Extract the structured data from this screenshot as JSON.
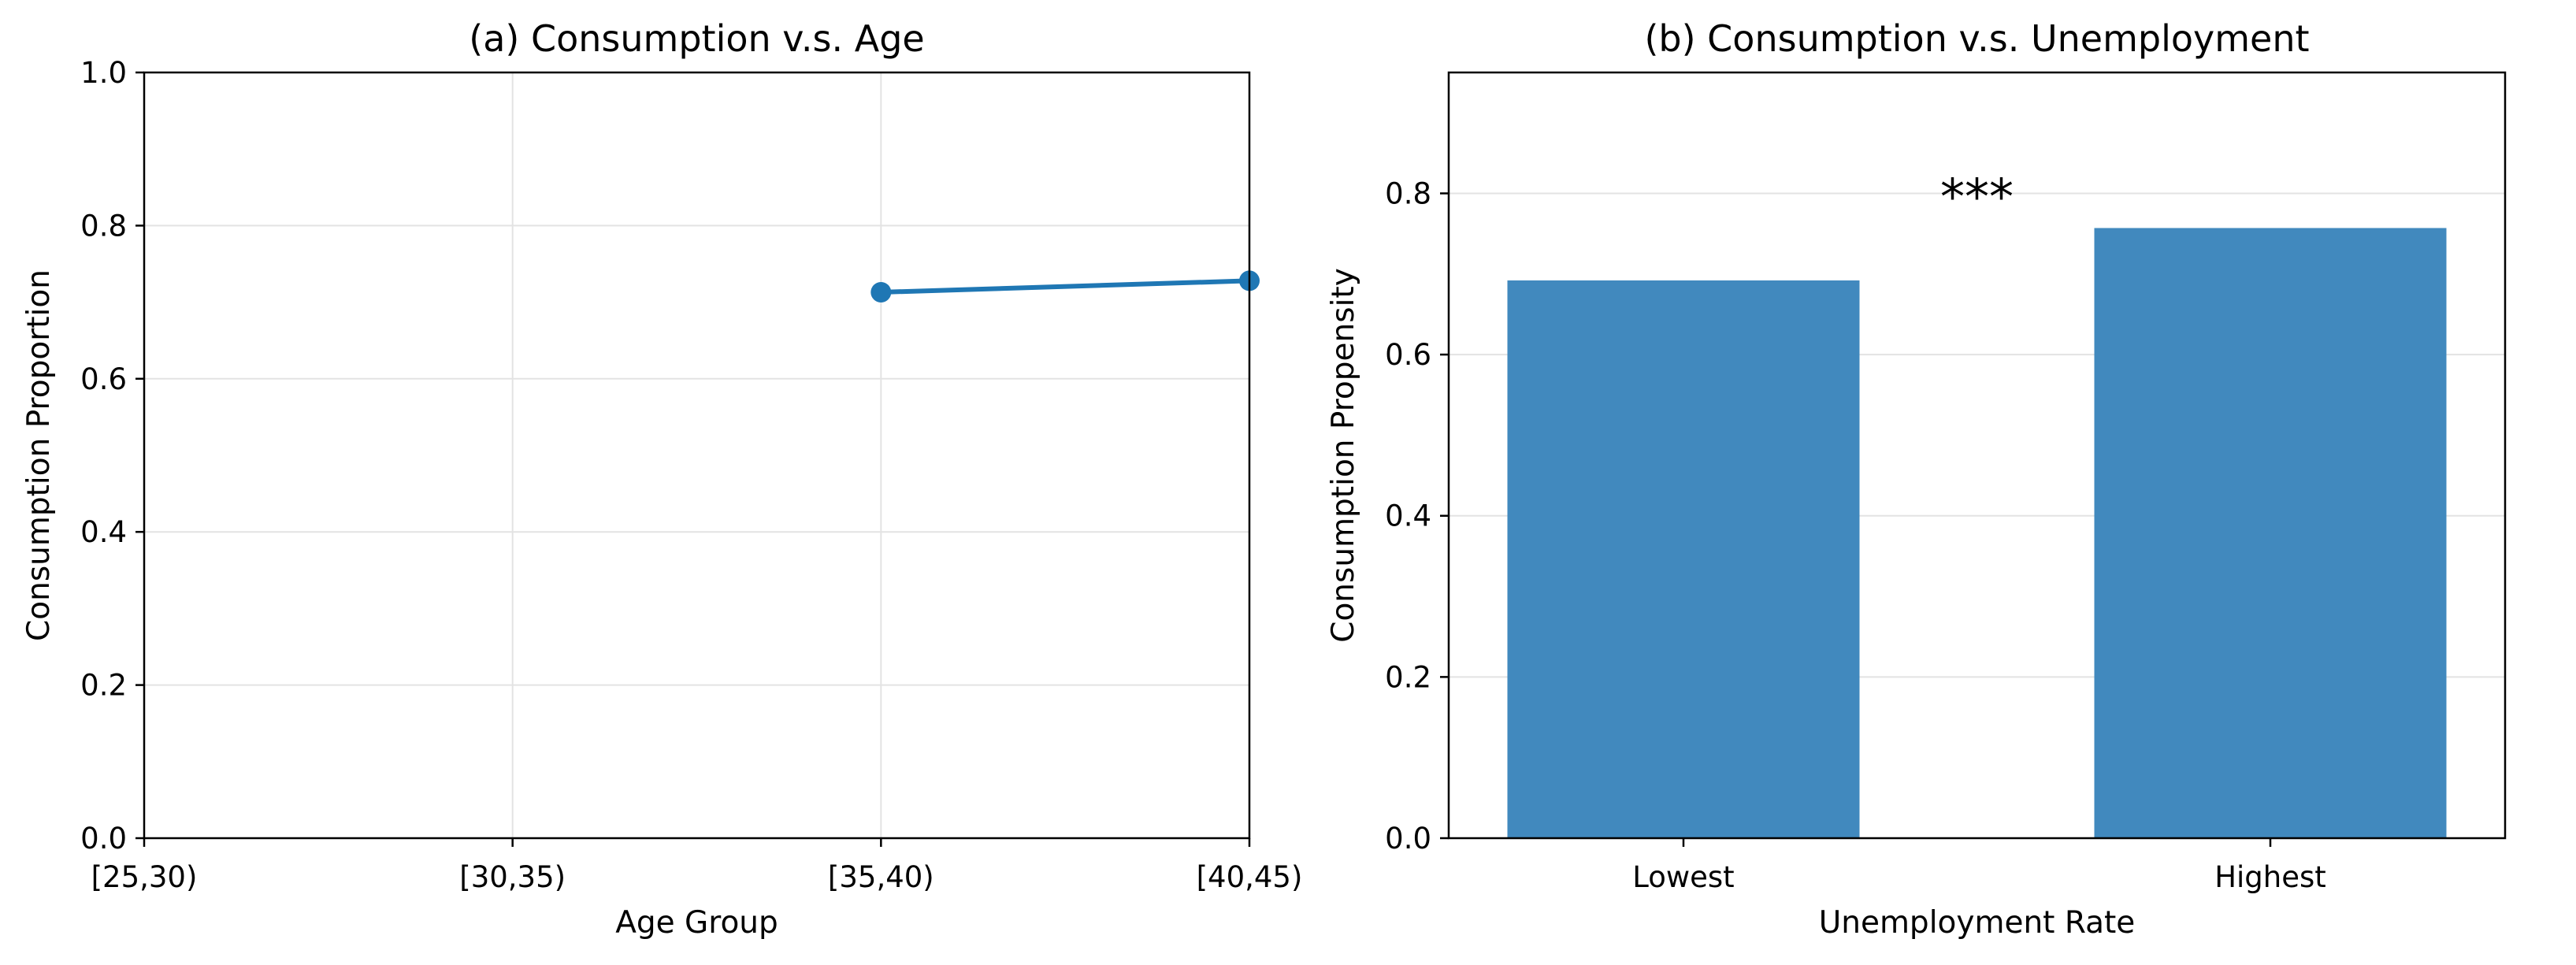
{
  "chart_data": [
    {
      "type": "line",
      "title": "(a) Consumption v.s. Age",
      "xlabel": "Age Group",
      "ylabel": "Consumption Proportion",
      "categories": [
        "[25,30)",
        "[30,35)",
        "[35,40)",
        "[40,45)"
      ],
      "series": [
        {
          "values": [
            null,
            null,
            0.713,
            0.728
          ]
        }
      ],
      "ylim": [
        0,
        1.0
      ],
      "yticks": [
        "0.0",
        "0.2",
        "0.4",
        "0.6",
        "0.8",
        "1.0"
      ],
      "grid": "both",
      "color": "#1f77b4"
    },
    {
      "type": "bar",
      "title": "(b) Consumption v.s. Unemployment",
      "xlabel": "Unemployment Rate",
      "ylabel": "Consumption Propensity",
      "categories": [
        "Lowest",
        "Highest"
      ],
      "values": [
        0.692,
        0.757
      ],
      "ylim": [
        0,
        0.95
      ],
      "yticks": [
        "0.0",
        "0.2",
        "0.4",
        "0.6",
        "0.8"
      ],
      "grid": "y",
      "color": "#4189be",
      "annotation": "***"
    }
  ]
}
